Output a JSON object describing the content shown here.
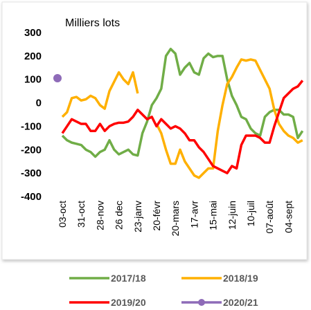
{
  "chart_data": {
    "type": "line",
    "y_label": "Milliers lots",
    "categories": [
      "03-oct",
      null,
      null,
      null,
      "31-oct",
      null,
      null,
      null,
      "28-nov",
      null,
      null,
      null,
      "26 dec",
      null,
      null,
      null,
      "23-janv",
      null,
      null,
      null,
      "20-févr",
      null,
      null,
      null,
      "20-mars",
      null,
      null,
      null,
      "17-avr",
      null,
      null,
      null,
      "15-mai",
      null,
      null,
      null,
      "12-juin",
      null,
      null,
      null,
      "10-juil",
      null,
      null,
      null,
      "07-août",
      null,
      null,
      null,
      "04-sept",
      null,
      null,
      null
    ],
    "series": [
      {
        "name": "2017/18",
        "color": "#70ad47",
        "values": [
          -140,
          -160,
          -170,
          -175,
          -180,
          -200,
          -210,
          -230,
          -210,
          -200,
          -160,
          -200,
          -220,
          -210,
          -200,
          -220,
          -225,
          -130,
          -80,
          -10,
          20,
          60,
          200,
          230,
          210,
          120,
          150,
          170,
          130,
          120,
          190,
          210,
          195,
          200,
          200,
          100,
          30,
          -10,
          -60,
          -70,
          -110,
          -130,
          -140,
          -60,
          -40,
          -30,
          -30,
          -50,
          -50,
          -60,
          -150,
          -120
        ]
      },
      {
        "name": "2018/19",
        "color": "#ffb000",
        "values": [
          -60,
          -40,
          20,
          25,
          10,
          15,
          30,
          20,
          -10,
          -25,
          50,
          90,
          130,
          100,
          80,
          130,
          40,
          null,
          null,
          null,
          -90,
          -130,
          -200,
          -260,
          -260,
          -200,
          -250,
          -280,
          -310,
          -320,
          -300,
          -280,
          -280,
          -120,
          -10,
          80,
          110,
          150,
          185,
          180,
          185,
          180,
          140,
          100,
          60,
          -30,
          -90,
          -120,
          -140,
          -150,
          -170,
          -160
        ]
      },
      {
        "name": "2019/20",
        "color": "#ff0000",
        "values": [
          -130,
          -100,
          -70,
          -80,
          -90,
          -90,
          -120,
          -120,
          -90,
          -120,
          -100,
          -90,
          -85,
          -85,
          -80,
          -60,
          -30,
          -50,
          -70,
          -60,
          -100,
          -70,
          -90,
          -110,
          -100,
          -110,
          -130,
          -160,
          -160,
          -190,
          -210,
          -240,
          -270,
          -280,
          -290,
          -300,
          -270,
          -280,
          -180,
          -140,
          -140,
          -140,
          -150,
          -170,
          -170,
          -100,
          -40,
          20,
          40,
          60,
          70,
          95
        ]
      },
      {
        "name": "2020/21",
        "color": "#8e6bb8",
        "marker": true,
        "values": [
          105,
          null,
          null,
          null,
          null,
          null,
          null,
          null,
          null,
          null,
          null,
          null,
          null,
          null,
          null,
          null,
          null,
          null,
          null,
          null,
          null,
          null,
          null,
          null,
          null,
          null,
          null,
          null,
          null,
          null,
          null,
          null,
          null,
          null,
          null,
          null,
          null,
          null,
          null,
          null,
          null,
          null,
          null,
          null,
          null,
          null,
          null,
          null,
          null,
          null,
          null,
          null
        ]
      }
    ],
    "ylim": [
      -400,
      300
    ],
    "yticks": [
      300,
      200,
      100,
      0,
      -100,
      -200,
      -300,
      -400
    ]
  }
}
